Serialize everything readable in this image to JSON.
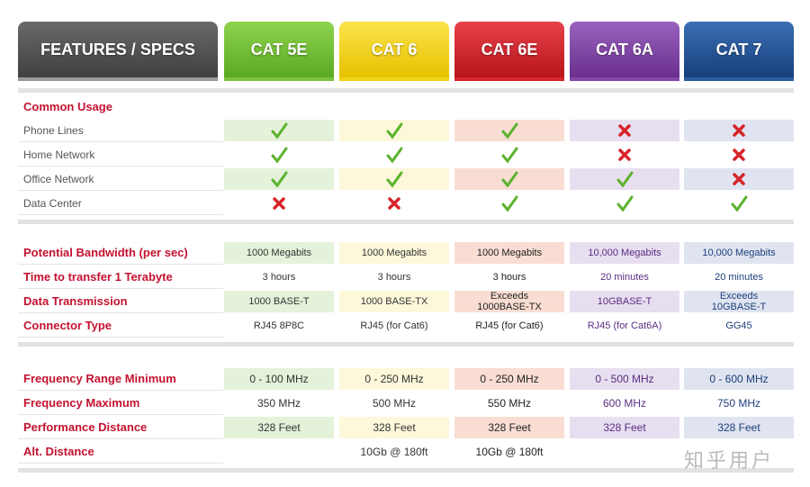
{
  "header": {
    "title": "FEATURES / SPECS",
    "columns": [
      "CAT 5E",
      "CAT 6",
      "CAT 6E",
      "CAT 6A",
      "CAT 7"
    ]
  },
  "sections": [
    {
      "title": "Common Usage",
      "rows": [
        {
          "label": "Phone Lines",
          "cells": [
            true,
            true,
            true,
            false,
            false
          ]
        },
        {
          "label": "Home Network",
          "cells": [
            true,
            true,
            true,
            false,
            false
          ]
        },
        {
          "label": "Office Network",
          "cells": [
            true,
            true,
            true,
            true,
            false
          ]
        },
        {
          "label": "Data Center",
          "cells": [
            false,
            false,
            true,
            true,
            true
          ]
        }
      ]
    },
    {
      "rows": [
        {
          "label": "Potential Bandwidth (per sec)",
          "cells": [
            "1000 Megabits",
            "1000 Megabits",
            "1000 Megabits",
            "10,000 Megabits",
            "10,000 Megabits"
          ]
        },
        {
          "label": "Time to transfer 1 Terabyte",
          "cells": [
            "3 hours",
            "3 hours",
            "3 hours",
            "20 minutes",
            "20 minutes"
          ]
        },
        {
          "label": "Data Transmission",
          "cells": [
            "1000 BASE-T",
            "1000 BASE-TX",
            "Exceeds\n1000BASE-TX",
            "10GBASE-T",
            "Exceeds\n10GBASE-T"
          ]
        },
        {
          "label": "Connector Type",
          "cells": [
            "RJ45 8P8C",
            "RJ45 (for Cat6)",
            "RJ45 (for Cat6)",
            "RJ45 (for Cat6A)",
            "GG45"
          ]
        }
      ]
    },
    {
      "rows": [
        {
          "label": "Frequency Range Minimum",
          "cells": [
            "0 - 100 MHz",
            "0 - 250 MHz",
            "0 - 250 MHz",
            "0 - 500 MHz",
            "0 - 600 MHz"
          ]
        },
        {
          "label": "Frequency Maximum",
          "cells": [
            "350 MHz",
            "500 MHz",
            "550 MHz",
            "600 MHz",
            "750 MHz"
          ]
        },
        {
          "label": "Performance Distance",
          "cells": [
            "328 Feet",
            "328 Feet",
            "328 Feet",
            "328 Feet",
            "328 Feet"
          ]
        },
        {
          "label": "Alt. Distance",
          "cells": [
            null,
            "10Gb @ 180ft",
            "10Gb @ 180ft",
            null,
            null
          ]
        }
      ]
    }
  ],
  "watermark": "知乎用户"
}
